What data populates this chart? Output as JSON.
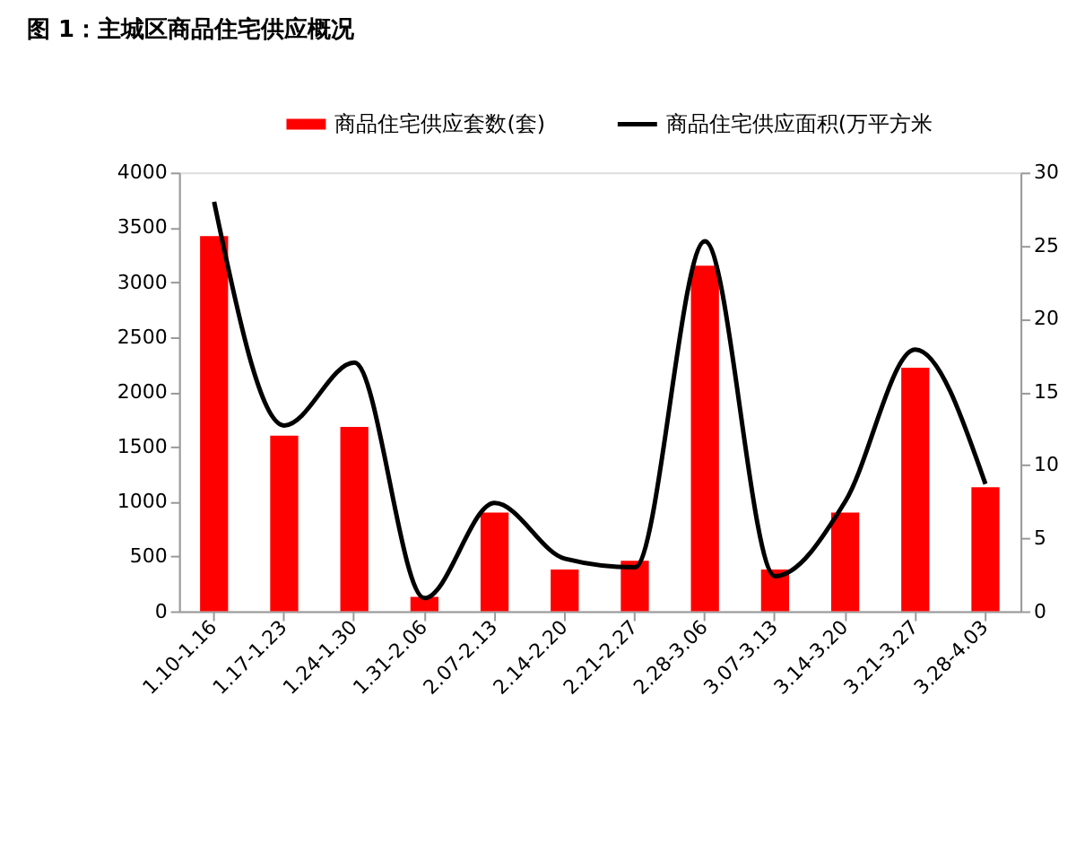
{
  "chart_data": {
    "type": "bar",
    "title": "图 1：主城区商品住宅供应概况",
    "categories": [
      "1.10-1.16",
      "1.17-1.23",
      "1.24-1.30",
      "1.31-2.06",
      "2.07-2.13",
      "2.14-2.20",
      "2.21-2.27",
      "2.28-3.06",
      "3.07-3.13",
      "3.14-3.20",
      "3.21-3.27",
      "3.28-4.03"
    ],
    "series": [
      {
        "name": "商品住宅供应套数(套)",
        "color": "#ff0000",
        "values": [
          3420,
          1600,
          1680,
          130,
          900,
          380,
          460,
          3150,
          380,
          900,
          2220,
          1130
        ]
      },
      {
        "name": "商品住宅供应面积(万平方米",
        "type": "line",
        "axis": "y2",
        "color": "#000000",
        "values": [
          28.0,
          12.7,
          17.0,
          0.9,
          7.4,
          3.6,
          3.0,
          25.3,
          2.4,
          7.5,
          17.9,
          8.7
        ]
      }
    ],
    "ylim": [
      0,
      4000
    ],
    "yticks": [
      0,
      500,
      1000,
      1500,
      2000,
      2500,
      3000,
      3500,
      4000
    ],
    "y2lim": [
      0,
      30
    ],
    "y2ticks": [
      0,
      5,
      10,
      15,
      20,
      25,
      30
    ],
    "legend": "top",
    "grid": false,
    "marker": "none",
    "line_style": "solid"
  }
}
